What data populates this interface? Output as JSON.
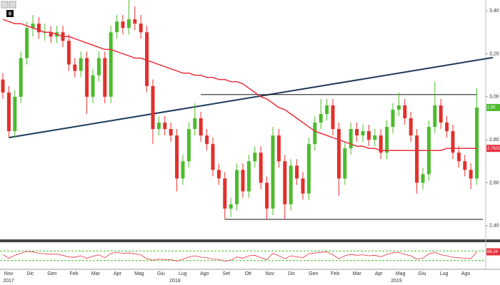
{
  "chart_data": {
    "type": "candlestick",
    "toolbar_badge": "0",
    "ylim": [
      2.34,
      3.45
    ],
    "yticks": [
      {
        "value": 2.4,
        "label": "2,40"
      },
      {
        "value": 2.6,
        "label": "2,60"
      },
      {
        "value": 2.8,
        "label": "2,80"
      },
      {
        "value": 3.0,
        "label": "3,00"
      },
      {
        "value": 3.2,
        "label": "3,20"
      },
      {
        "value": 3.4,
        "label": "3,40"
      }
    ],
    "months": [
      "Nov",
      "Dic",
      "Gen",
      "Feb",
      "Mar",
      "Apr",
      "Mag",
      "Giu",
      "Lug",
      "Ago",
      "Set",
      "Ott",
      "Nov",
      "Dic",
      "Gen",
      "Feb",
      "Mar",
      "Apr",
      "Mag",
      "Giu",
      "Lug",
      "Ago"
    ],
    "years": [
      "2017",
      "2018",
      "2019"
    ],
    "up_color": "#4cbb2c",
    "down_color": "#e0302c",
    "open": [
      3.08,
      3.02,
      2.84,
      3.0,
      3.18,
      3.32,
      3.34,
      3.3,
      3.3,
      3.28,
      3.3,
      3.26,
      3.15,
      3.12,
      3.18,
      3.0,
      3.1,
      3.18,
      3.0,
      3.3,
      3.35,
      3.32,
      3.36,
      3.34,
      3.3,
      3.05,
      2.85,
      2.88,
      2.85,
      2.82,
      2.62,
      2.7,
      2.85,
      2.9,
      2.82,
      2.78,
      2.66,
      2.62,
      2.48,
      2.5,
      2.66,
      2.56,
      2.7,
      2.74,
      2.6,
      2.48,
      2.82,
      2.7,
      2.5,
      2.68,
      2.62,
      2.55,
      2.78,
      2.88,
      2.92,
      2.96,
      2.85,
      2.62,
      2.76,
      2.85,
      2.82,
      2.84,
      2.8,
      2.82,
      2.74,
      2.86,
      2.94,
      2.96,
      2.9,
      2.82,
      2.6,
      2.64,
      2.86,
      2.96,
      2.88,
      2.84,
      2.74,
      2.7,
      2.66,
      2.62
    ],
    "high": [
      3.11,
      3.05,
      3.03,
      3.21,
      3.35,
      3.38,
      3.37,
      3.34,
      3.33,
      3.33,
      3.33,
      3.29,
      3.18,
      3.21,
      3.21,
      3.13,
      3.21,
      3.21,
      3.33,
      3.38,
      3.38,
      3.46,
      3.42,
      3.38,
      3.33,
      3.08,
      2.91,
      2.91,
      2.88,
      2.85,
      2.73,
      2.88,
      2.97,
      2.93,
      2.85,
      2.81,
      2.69,
      2.65,
      2.53,
      2.69,
      2.69,
      2.73,
      2.77,
      2.77,
      2.63,
      2.86,
      2.85,
      2.73,
      2.71,
      2.71,
      2.65,
      2.81,
      2.91,
      2.99,
      2.99,
      2.99,
      2.88,
      2.79,
      2.88,
      2.88,
      2.87,
      2.87,
      2.85,
      2.85,
      2.89,
      2.97,
      3.02,
      2.99,
      2.93,
      2.85,
      2.67,
      2.89,
      3.07,
      2.99,
      2.91,
      2.87,
      2.77,
      2.73,
      2.69,
      3.04
    ],
    "low": [
      2.99,
      2.81,
      2.81,
      2.97,
      3.15,
      3.28,
      3.27,
      3.26,
      3.25,
      3.25,
      3.23,
      3.12,
      3.09,
      3.09,
      2.92,
      2.97,
      3.07,
      2.97,
      2.97,
      3.27,
      3.29,
      3.29,
      3.31,
      3.27,
      3.02,
      2.78,
      2.82,
      2.82,
      2.79,
      2.56,
      2.59,
      2.67,
      2.82,
      2.79,
      2.75,
      2.63,
      2.59,
      2.43,
      2.44,
      2.47,
      2.53,
      2.53,
      2.67,
      2.57,
      2.43,
      2.45,
      2.67,
      2.43,
      2.47,
      2.59,
      2.52,
      2.52,
      2.75,
      2.85,
      2.89,
      2.82,
      2.54,
      2.59,
      2.73,
      2.79,
      2.79,
      2.77,
      2.77,
      2.71,
      2.71,
      2.83,
      2.91,
      2.87,
      2.79,
      2.55,
      2.57,
      2.61,
      2.83,
      2.85,
      2.81,
      2.71,
      2.67,
      2.63,
      2.57,
      2.59
    ],
    "close": [
      3.02,
      2.84,
      3.0,
      3.18,
      3.32,
      3.34,
      3.3,
      3.3,
      3.28,
      3.3,
      3.26,
      3.15,
      3.12,
      3.18,
      3.0,
      3.1,
      3.18,
      3.0,
      3.3,
      3.35,
      3.32,
      3.36,
      3.34,
      3.3,
      3.05,
      2.85,
      2.88,
      2.85,
      2.82,
      2.62,
      2.7,
      2.85,
      2.9,
      2.82,
      2.78,
      2.66,
      2.62,
      2.48,
      2.5,
      2.66,
      2.56,
      2.7,
      2.74,
      2.6,
      2.48,
      2.82,
      2.7,
      2.5,
      2.68,
      2.62,
      2.55,
      2.78,
      2.88,
      2.92,
      2.96,
      2.85,
      2.62,
      2.76,
      2.85,
      2.82,
      2.84,
      2.8,
      2.82,
      2.74,
      2.86,
      2.94,
      2.96,
      2.9,
      2.82,
      2.6,
      2.64,
      2.86,
      2.96,
      2.88,
      2.84,
      2.74,
      2.7,
      2.66,
      2.62,
      2.95
    ],
    "moving_average": {
      "color": "#e8303e",
      "values": [
        3.36,
        3.35,
        3.34,
        3.34,
        3.33,
        3.32,
        3.31,
        3.3,
        3.3,
        3.29,
        3.28,
        3.28,
        3.27,
        3.26,
        3.25,
        3.24,
        3.23,
        3.22,
        3.22,
        3.21,
        3.2,
        3.19,
        3.18,
        3.18,
        3.17,
        3.16,
        3.15,
        3.14,
        3.13,
        3.12,
        3.11,
        3.11,
        3.1,
        3.1,
        3.09,
        3.09,
        3.08,
        3.08,
        3.07,
        3.07,
        3.06,
        3.04,
        3.02,
        3.0,
        2.99,
        2.97,
        2.95,
        2.94,
        2.92,
        2.9,
        2.88,
        2.86,
        2.84,
        2.83,
        2.82,
        2.81,
        2.8,
        2.79,
        2.78,
        2.77,
        2.77,
        2.76,
        2.76,
        2.75,
        2.75,
        2.75,
        2.75,
        2.75,
        2.75,
        2.75,
        2.75,
        2.75,
        2.75,
        2.75,
        2.76,
        2.76,
        2.76,
        2.76,
        2.76,
        2.7601
      ]
    },
    "price_tags": [
      {
        "value": 2.95,
        "label": "2,95",
        "color": "#4cbb2c"
      },
      {
        "value": 2.7601,
        "label": "2,7601",
        "color": "#e8303e"
      }
    ],
    "levels": [
      {
        "value": 3.01,
        "from": 33,
        "to": 79,
        "color": "#111111"
      },
      {
        "value": 2.43,
        "from": 37,
        "to": 80,
        "color": "#111111"
      }
    ],
    "trendline": {
      "from": [
        1,
        2.81
      ],
      "to": [
        79,
        3.17
      ],
      "color": "#1f3a5a"
    },
    "rsi": {
      "ylim": [
        0,
        100
      ],
      "levels": [
        30,
        70
      ],
      "color": "#e8303e",
      "tag": {
        "value": 66.24,
        "label": "66,24"
      },
      "values": [
        55,
        40,
        52,
        60,
        68,
        66,
        60,
        58,
        56,
        57,
        52,
        45,
        44,
        50,
        40,
        48,
        54,
        42,
        60,
        64,
        60,
        62,
        58,
        54,
        38,
        32,
        36,
        35,
        34,
        28,
        36,
        45,
        50,
        44,
        42,
        36,
        35,
        28,
        32,
        45,
        40,
        50,
        52,
        42,
        34,
        60,
        50,
        38,
        50,
        46,
        42,
        58,
        62,
        64,
        66,
        54,
        38,
        50,
        56,
        52,
        54,
        50,
        52,
        46,
        56,
        62,
        64,
        56,
        50,
        36,
        40,
        58,
        64,
        54,
        50,
        44,
        42,
        40,
        38,
        66.24
      ]
    }
  }
}
